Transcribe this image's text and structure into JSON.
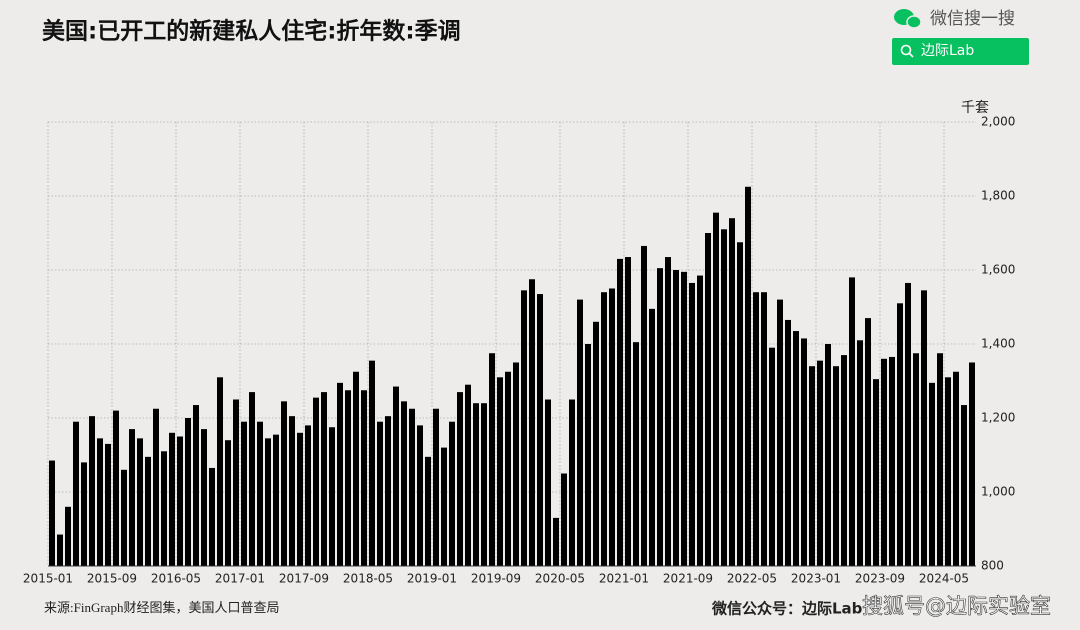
{
  "header": {
    "search": "微信搜一搜",
    "button": "边际Lab",
    "watermark": "搜狐号@边际实验室"
  },
  "chart_data": {
    "type": "bar",
    "title": "美国:已开工的新建私人住宅:折年数:季调",
    "y_label": "千套",
    "source": "来源:FinGraph财经图集，美国人口普查局",
    "footer": "微信公众号：边际Lab",
    "color": "#000000",
    "categories": [
      "2015-01",
      null,
      null,
      null,
      null,
      null,
      null,
      null,
      "2015-09",
      null,
      null,
      null,
      null,
      null,
      null,
      null,
      "2016-05",
      null,
      null,
      null,
      null,
      null,
      null,
      null,
      "2017-01",
      null,
      null,
      null,
      null,
      null,
      null,
      null,
      "2017-09",
      null,
      null,
      null,
      null,
      null,
      null,
      null,
      "2018-05",
      null,
      null,
      null,
      null,
      null,
      null,
      null,
      "2019-01",
      null,
      null,
      null,
      null,
      null,
      null,
      null,
      "2019-09",
      null,
      null,
      null,
      null,
      null,
      null,
      null,
      "2020-05",
      null,
      null,
      null,
      null,
      null,
      null,
      null,
      "2021-01",
      null,
      null,
      null,
      null,
      null,
      null,
      null,
      "2021-09",
      null,
      null,
      null,
      null,
      null,
      null,
      null,
      "2022-05",
      null,
      null,
      null,
      null,
      null,
      null,
      null,
      "2023-01",
      null,
      null,
      null,
      null,
      null,
      null,
      null,
      "2023-09",
      null,
      null,
      null,
      null,
      null,
      null,
      null,
      "2024-05",
      null,
      null,
      null
    ],
    "values": [
      1085,
      885,
      960,
      1190,
      1080,
      1205,
      1145,
      1130,
      1220,
      1060,
      1170,
      1145,
      1095,
      1225,
      1110,
      1160,
      1150,
      1200,
      1235,
      1170,
      1065,
      1310,
      1140,
      1250,
      1190,
      1270,
      1190,
      1145,
      1155,
      1245,
      1205,
      1160,
      1180,
      1255,
      1270,
      1175,
      1295,
      1275,
      1325,
      1275,
      1355,
      1190,
      1205,
      1285,
      1245,
      1225,
      1180,
      1095,
      1225,
      1120,
      1190,
      1270,
      1290,
      1240,
      1240,
      1375,
      1310,
      1325,
      1350,
      1545,
      1575,
      1535,
      1250,
      930,
      1050,
      1250,
      1520,
      1400,
      1460,
      1540,
      1550,
      1630,
      1635,
      1405,
      1665,
      1495,
      1605,
      1635,
      1600,
      1595,
      1565,
      1585,
      1700,
      1755,
      1710,
      1740,
      1675,
      1825,
      1540,
      1540,
      1390,
      1520,
      1465,
      1435,
      1415,
      1340,
      1355,
      1400,
      1340,
      1370,
      1580,
      1410,
      1470,
      1305,
      1360,
      1365,
      1510,
      1565,
      1375,
      1545,
      1295,
      1375,
      1310,
      1325,
      1235,
      1350
    ],
    "ylim": [
      800,
      2000
    ],
    "yticks": [
      800,
      {
        "value": 1000,
        "label": "1,000"
      },
      {
        "value": 1200,
        "label": "1,200"
      },
      {
        "value": 1400,
        "label": "1,400"
      },
      {
        "value": 1600,
        "label": "1,600"
      },
      {
        "value": 1800,
        "label": "1,800"
      },
      {
        "value": 2000,
        "label": "2,000"
      }
    ],
    "grid": true
  }
}
